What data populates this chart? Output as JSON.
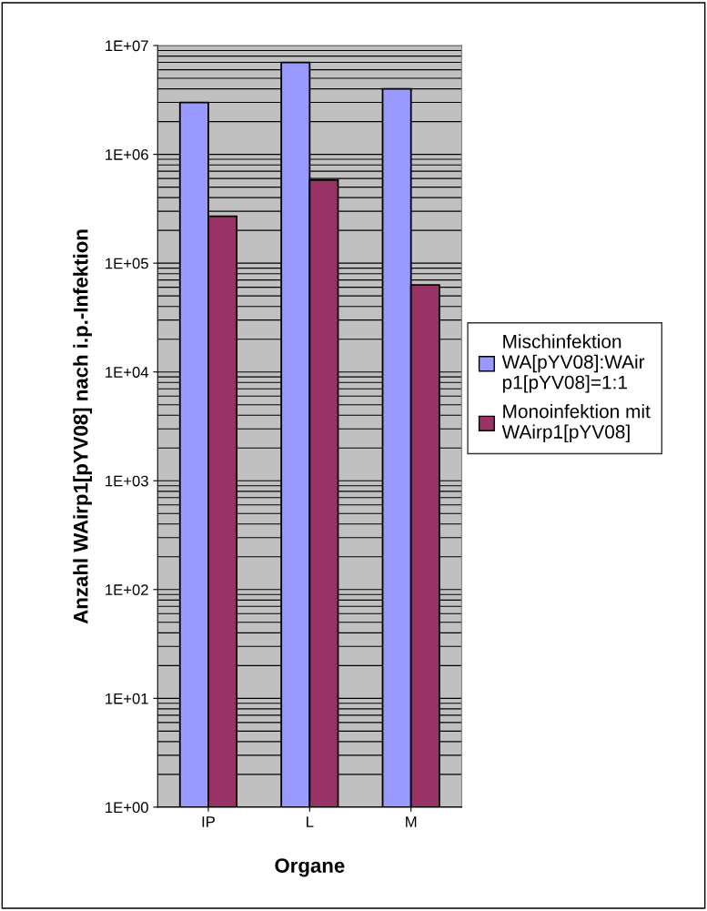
{
  "chart_data": {
    "type": "bar",
    "xlabel": "Organe",
    "ylabel": "Anzahl WAirp1[pYV08] nach i.p.-Infektion",
    "categories": [
      "IP",
      "L",
      "M"
    ],
    "series": [
      {
        "name": "Mischinfektion\nWA[pYV08]:WAir\np1[pYV08]=1:1",
        "color": "#9999ff",
        "values": [
          3000000,
          7000000,
          4000000
        ]
      },
      {
        "name": "Monoinfektion mit\nWAirp1[pYV08]",
        "color": "#993366",
        "values": [
          270000,
          580000,
          63000
        ]
      }
    ],
    "log": "y",
    "ylim": [
      1,
      10000000
    ],
    "yticks": [
      {
        "value": 1,
        "label": "1E+00"
      },
      {
        "value": 10,
        "label": "1E+01"
      },
      {
        "value": 100,
        "label": "1E+02"
      },
      {
        "value": 1000,
        "label": "1E+03"
      },
      {
        "value": 10000,
        "label": "1E+04"
      },
      {
        "value": 100000,
        "label": "1E+05"
      },
      {
        "value": 1000000,
        "label": "1E+06"
      },
      {
        "value": 10000000,
        "label": "1E+07"
      }
    ],
    "grid": "y",
    "legend": "right"
  }
}
